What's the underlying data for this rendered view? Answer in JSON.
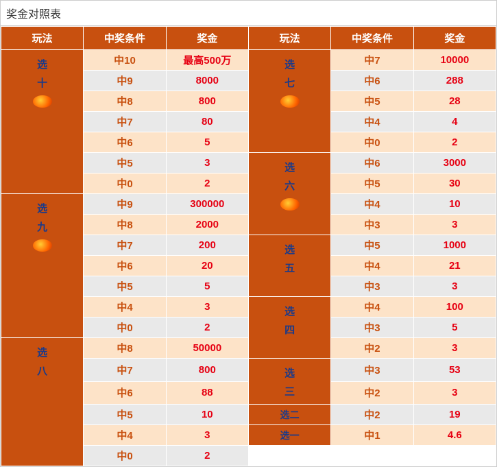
{
  "title": "奖金对照表",
  "headers": [
    "玩法",
    "中奖条件",
    "奖金",
    "玩法",
    "中奖条件",
    "奖金"
  ],
  "colors": {
    "header_bg": "#c8500f",
    "header_text": "#ffffff",
    "play_bg": "#c8500f",
    "play_text": "#1a3a8a",
    "row_odd_bg": "#fde3c8",
    "row_even_bg": "#e9e9e9",
    "cond_text": "#c8500f",
    "prize_text": "#e60012"
  },
  "left_groups": [
    {
      "name": "选十",
      "name_chars": [
        "选",
        "十"
      ],
      "rows": [
        {
          "cond": "中10",
          "prize": "最高500万"
        },
        {
          "cond": "中9",
          "prize": "8000"
        },
        {
          "cond": "中8",
          "prize": "800"
        },
        {
          "cond": "中7",
          "prize": "80"
        },
        {
          "cond": "中6",
          "prize": "5"
        },
        {
          "cond": "中5",
          "prize": "3"
        },
        {
          "cond": "中0",
          "prize": "2"
        }
      ],
      "has_icon": true
    },
    {
      "name": "选九",
      "name_chars": [
        "选",
        "九"
      ],
      "rows": [
        {
          "cond": "中9",
          "prize": "300000"
        },
        {
          "cond": "中8",
          "prize": "2000"
        },
        {
          "cond": "中7",
          "prize": "200"
        },
        {
          "cond": "中6",
          "prize": "20"
        },
        {
          "cond": "中5",
          "prize": "5"
        },
        {
          "cond": "中4",
          "prize": "3"
        },
        {
          "cond": "中0",
          "prize": "2"
        }
      ],
      "has_icon": true
    },
    {
      "name": "选八",
      "name_chars": [
        "选",
        "八"
      ],
      "rows": [
        {
          "cond": "中8",
          "prize": "50000"
        },
        {
          "cond": "中7",
          "prize": "800"
        },
        {
          "cond": "中6",
          "prize": "88"
        },
        {
          "cond": "中5",
          "prize": "10"
        },
        {
          "cond": "中4",
          "prize": "3"
        },
        {
          "cond": "中0",
          "prize": "2"
        }
      ],
      "has_icon": false
    }
  ],
  "right_groups": [
    {
      "name": "选七",
      "name_chars": [
        "选",
        "七"
      ],
      "rows": [
        {
          "cond": "中7",
          "prize": "10000"
        },
        {
          "cond": "中6",
          "prize": "288"
        },
        {
          "cond": "中5",
          "prize": "28"
        },
        {
          "cond": "中4",
          "prize": "4"
        },
        {
          "cond": "中0",
          "prize": "2"
        }
      ],
      "has_icon": true,
      "style": "vertical"
    },
    {
      "name": "选六",
      "name_chars": [
        "选",
        "六"
      ],
      "rows": [
        {
          "cond": "中6",
          "prize": "3000"
        },
        {
          "cond": "中5",
          "prize": "30"
        },
        {
          "cond": "中4",
          "prize": "10"
        },
        {
          "cond": "中3",
          "prize": "3"
        }
      ],
      "has_icon": true,
      "style": "vertical"
    },
    {
      "name": "选五",
      "name_chars": [
        "选",
        "五"
      ],
      "rows": [
        {
          "cond": "中5",
          "prize": "1000"
        },
        {
          "cond": "中4",
          "prize": "21"
        },
        {
          "cond": "中3",
          "prize": "3"
        }
      ],
      "has_icon": false,
      "style": "vertical"
    },
    {
      "name": "选四",
      "name_chars": [
        "选",
        "四"
      ],
      "rows": [
        {
          "cond": "中4",
          "prize": "100"
        },
        {
          "cond": "中3",
          "prize": "5"
        },
        {
          "cond": "中2",
          "prize": "3"
        }
      ],
      "has_icon": false,
      "style": "vertical"
    },
    {
      "name": "选三",
      "name_chars": [
        "选",
        "三"
      ],
      "rows": [
        {
          "cond": "中3",
          "prize": "53"
        },
        {
          "cond": "中2",
          "prize": "3"
        }
      ],
      "has_icon": false,
      "style": "vertical"
    },
    {
      "name": "选二",
      "name_chars": [
        "选二"
      ],
      "rows": [
        {
          "cond": "中2",
          "prize": "19"
        }
      ],
      "has_icon": false,
      "style": "horizontal"
    },
    {
      "name": "选一",
      "name_chars": [
        "选一"
      ],
      "rows": [
        {
          "cond": "中1",
          "prize": "4.6"
        }
      ],
      "has_icon": false,
      "style": "horizontal"
    }
  ]
}
